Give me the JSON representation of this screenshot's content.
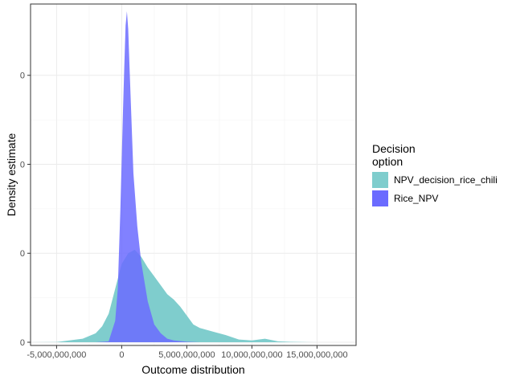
{
  "chart_data": {
    "type": "area",
    "xlabel": "Outcome distribution",
    "ylabel": "Density estimate",
    "xlim": [
      -7000000000,
      18000000000
    ],
    "x_ticks": [
      {
        "value": -5000000000,
        "label": "-5,000,000,000"
      },
      {
        "value": 0,
        "label": "0"
      },
      {
        "value": 5000000000,
        "label": "5,000,000,000"
      },
      {
        "value": 10000000000,
        "label": "10,000,000,000"
      },
      {
        "value": 15000000000,
        "label": "15,000,000,000"
      }
    ],
    "y_ticks": [
      {
        "value": 0,
        "label": "0"
      },
      {
        "value": 5e-11,
        "label": "0"
      },
      {
        "value": 1e-10,
        "label": "0"
      },
      {
        "value": 1.5e-10,
        "label": "0"
      }
    ],
    "ylim": [
      0,
      1.86e-10
    ],
    "grid": true,
    "legend": {
      "title": "Decision\noption",
      "position": "right"
    },
    "series": [
      {
        "name": "NPV_decision_rice_chili",
        "color": "#7fcdcd",
        "x": [
          -7000000000,
          -5000000000,
          -3000000000,
          -2000000000,
          -1500000000,
          -1000000000,
          -500000000,
          0,
          500000000,
          1000000000,
          1500000000,
          2000000000,
          2500000000,
          3000000000,
          3500000000,
          4000000000,
          4500000000,
          5000000000,
          5500000000,
          6000000000,
          6500000000,
          7000000000,
          8000000000,
          9000000000,
          10000000000,
          11000000000,
          12000000000,
          13000000000,
          15000000000,
          18000000000
        ],
        "y": [
          0.0,
          1e-13,
          2e-12,
          5e-12,
          9e-12,
          1.6e-11,
          3e-11,
          4.4e-11,
          5e-11,
          5.2e-11,
          4.8e-11,
          4.2e-11,
          3.7e-11,
          3.2e-11,
          2.7e-11,
          2.4e-11,
          2e-11,
          1.5e-11,
          1e-11,
          8e-12,
          7e-12,
          6e-12,
          4e-12,
          1.5e-12,
          1e-12,
          2e-12,
          5e-13,
          2e-13,
          0.0,
          0.0
        ]
      },
      {
        "name": "Rice_NPV",
        "color": "#6b6bff",
        "x": [
          -2000000000,
          -1000000000,
          -500000000,
          -300000000,
          -100000000,
          100000000,
          200000000,
          300000000,
          400000000,
          500000000,
          600000000,
          700000000,
          900000000,
          1200000000,
          1500000000,
          2000000000,
          2500000000,
          3000000000,
          3500000000,
          4000000000,
          5000000000,
          6000000000
        ],
        "y": [
          0.0,
          5e-13,
          1.2e-11,
          3e-11,
          7.5e-11,
          1.3e-10,
          1.55e-10,
          1.78e-10,
          1.86e-10,
          1.76e-10,
          1.55e-10,
          1.35e-10,
          9.5e-11,
          6.5e-11,
          4.5e-11,
          2.3e-11,
          1e-11,
          5e-12,
          2e-12,
          1e-12,
          3e-13,
          0.0
        ]
      }
    ]
  }
}
